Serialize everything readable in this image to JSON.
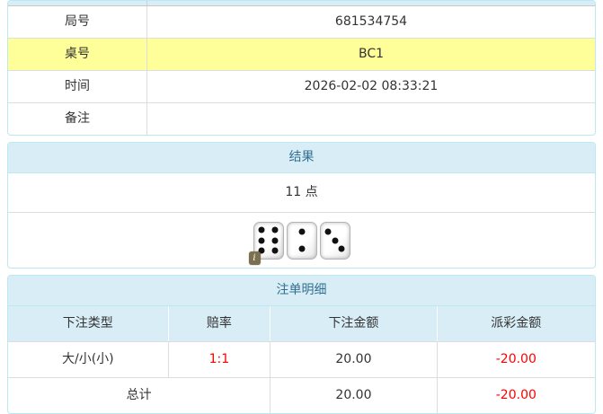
{
  "colors": {
    "panel_border": "#bce8f1",
    "panel_head_bg": "#d9edf7",
    "panel_head_text": "#31708f",
    "highlight_row": "#ffff99",
    "negative_amount": "#ff0000",
    "body_text": "#333333",
    "grid_line": "#dddddd"
  },
  "info_table": {
    "rows": [
      {
        "label": "局号",
        "value": "681534754",
        "highlight": false
      },
      {
        "label": "桌号",
        "value": "BC1",
        "highlight": true
      },
      {
        "label": "时间",
        "value": "2026-02-02 08:33:21",
        "highlight": false
      },
      {
        "label": "备注",
        "value": "",
        "highlight": false
      }
    ]
  },
  "result_panel": {
    "title": "结果",
    "points": "11 点",
    "dice": [
      6,
      2,
      3
    ],
    "info_icon": "i"
  },
  "bets_panel": {
    "title": "注单明细",
    "columns": [
      "下注类型",
      "赔率",
      "下注金额",
      "派彩金额"
    ],
    "rows": [
      {
        "type": "大/小(小)",
        "odds": "1:1",
        "bet": "20.00",
        "payout": "-20.00"
      }
    ],
    "total": {
      "label": "总计",
      "bet": "20.00",
      "payout": "-20.00"
    }
  }
}
